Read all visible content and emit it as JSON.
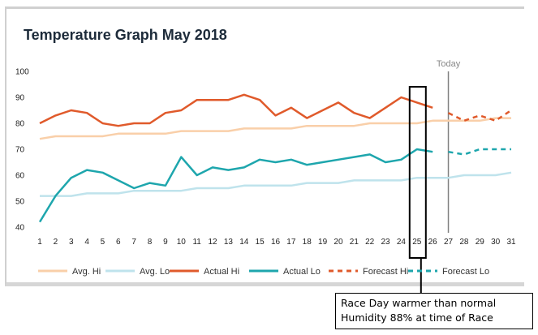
{
  "title": "Temperature Graph May 2018",
  "today_label": "Today",
  "callout": {
    "line1": "Race Day warmer than normal",
    "line2": "Humidity 88% at time of Race"
  },
  "colors": {
    "avg_hi": "#f9cfa9",
    "avg_lo": "#bfe3ec",
    "actual_hi": "#e05a2b",
    "actual_lo": "#1ea6ad",
    "forecast_hi": "#e05a2b",
    "forecast_lo": "#1ea6ad",
    "today_line": "#808080",
    "highlight_box": "#000000"
  },
  "chart_data": {
    "type": "line",
    "title": "Temperature Graph May 2018",
    "xlabel": "",
    "ylabel": "",
    "x": [
      1,
      2,
      3,
      4,
      5,
      6,
      7,
      8,
      9,
      10,
      11,
      12,
      13,
      14,
      15,
      16,
      17,
      18,
      19,
      20,
      21,
      22,
      23,
      24,
      25,
      26,
      27,
      28,
      29,
      30,
      31
    ],
    "x_tick_labels": [
      "1",
      "2",
      "3",
      "4",
      "5",
      "6",
      "7",
      "8",
      "9",
      "10",
      "11",
      "12",
      "13",
      "14",
      "15",
      "16",
      "17",
      "18",
      "19",
      "20",
      "21",
      "22",
      "23",
      "24",
      "25",
      "26",
      "27",
      "28",
      "29",
      "30",
      "31"
    ],
    "y_ticks": [
      40,
      50,
      60,
      70,
      80,
      90,
      100
    ],
    "ylim": [
      40,
      100
    ],
    "xlim": [
      1,
      31
    ],
    "grid": false,
    "legend_position": "bottom",
    "today_marker": 27,
    "highlight_day": 25,
    "series": [
      {
        "name": "Avg. Hi",
        "style": "solid",
        "color_key": "avg_hi",
        "x": [
          1,
          2,
          3,
          4,
          5,
          6,
          7,
          8,
          9,
          10,
          11,
          12,
          13,
          14,
          15,
          16,
          17,
          18,
          19,
          20,
          21,
          22,
          23,
          24,
          25,
          26,
          27,
          28,
          29,
          30,
          31
        ],
        "values": [
          74,
          75,
          75,
          75,
          75,
          76,
          76,
          76,
          76,
          77,
          77,
          77,
          77,
          78,
          78,
          78,
          78,
          79,
          79,
          79,
          79,
          80,
          80,
          80,
          80,
          81,
          81,
          81,
          81,
          82,
          82
        ]
      },
      {
        "name": "Avg. Lo",
        "style": "solid",
        "color_key": "avg_lo",
        "x": [
          1,
          2,
          3,
          4,
          5,
          6,
          7,
          8,
          9,
          10,
          11,
          12,
          13,
          14,
          15,
          16,
          17,
          18,
          19,
          20,
          21,
          22,
          23,
          24,
          25,
          26,
          27,
          28,
          29,
          30,
          31
        ],
        "values": [
          52,
          52,
          52,
          53,
          53,
          53,
          54,
          54,
          54,
          54,
          55,
          55,
          55,
          56,
          56,
          56,
          56,
          57,
          57,
          57,
          58,
          58,
          58,
          58,
          59,
          59,
          59,
          60,
          60,
          60,
          61
        ]
      },
      {
        "name": "Actual Hi",
        "style": "solid",
        "color_key": "actual_hi",
        "x": [
          1,
          2,
          3,
          4,
          5,
          6,
          7,
          8,
          9,
          10,
          11,
          12,
          13,
          14,
          15,
          16,
          17,
          18,
          19,
          20,
          21,
          22,
          23,
          24,
          25,
          26
        ],
        "values": [
          80,
          83,
          85,
          84,
          80,
          79,
          80,
          80,
          84,
          85,
          89,
          89,
          89,
          91,
          89,
          83,
          86,
          82,
          85,
          88,
          84,
          82,
          86,
          90,
          88,
          86
        ]
      },
      {
        "name": "Actual Lo",
        "style": "solid",
        "color_key": "actual_lo",
        "x": [
          1,
          2,
          3,
          4,
          5,
          6,
          7,
          8,
          9,
          10,
          11,
          12,
          13,
          14,
          15,
          16,
          17,
          18,
          19,
          20,
          21,
          22,
          23,
          24,
          25,
          26
        ],
        "values": [
          42,
          52,
          59,
          62,
          61,
          58,
          55,
          57,
          56,
          67,
          60,
          63,
          62,
          63,
          66,
          65,
          66,
          64,
          65,
          66,
          67,
          68,
          65,
          66,
          70,
          69
        ]
      },
      {
        "name": "Forecast Hi",
        "style": "dashed",
        "color_key": "forecast_hi",
        "x": [
          27,
          28,
          29,
          30,
          31
        ],
        "values": [
          84,
          81,
          83,
          81,
          85
        ]
      },
      {
        "name": "Forecast Lo",
        "style": "dashed",
        "color_key": "forecast_lo",
        "x": [
          27,
          28,
          29,
          30,
          31
        ],
        "values": [
          69,
          68,
          70,
          70,
          70
        ]
      }
    ]
  }
}
